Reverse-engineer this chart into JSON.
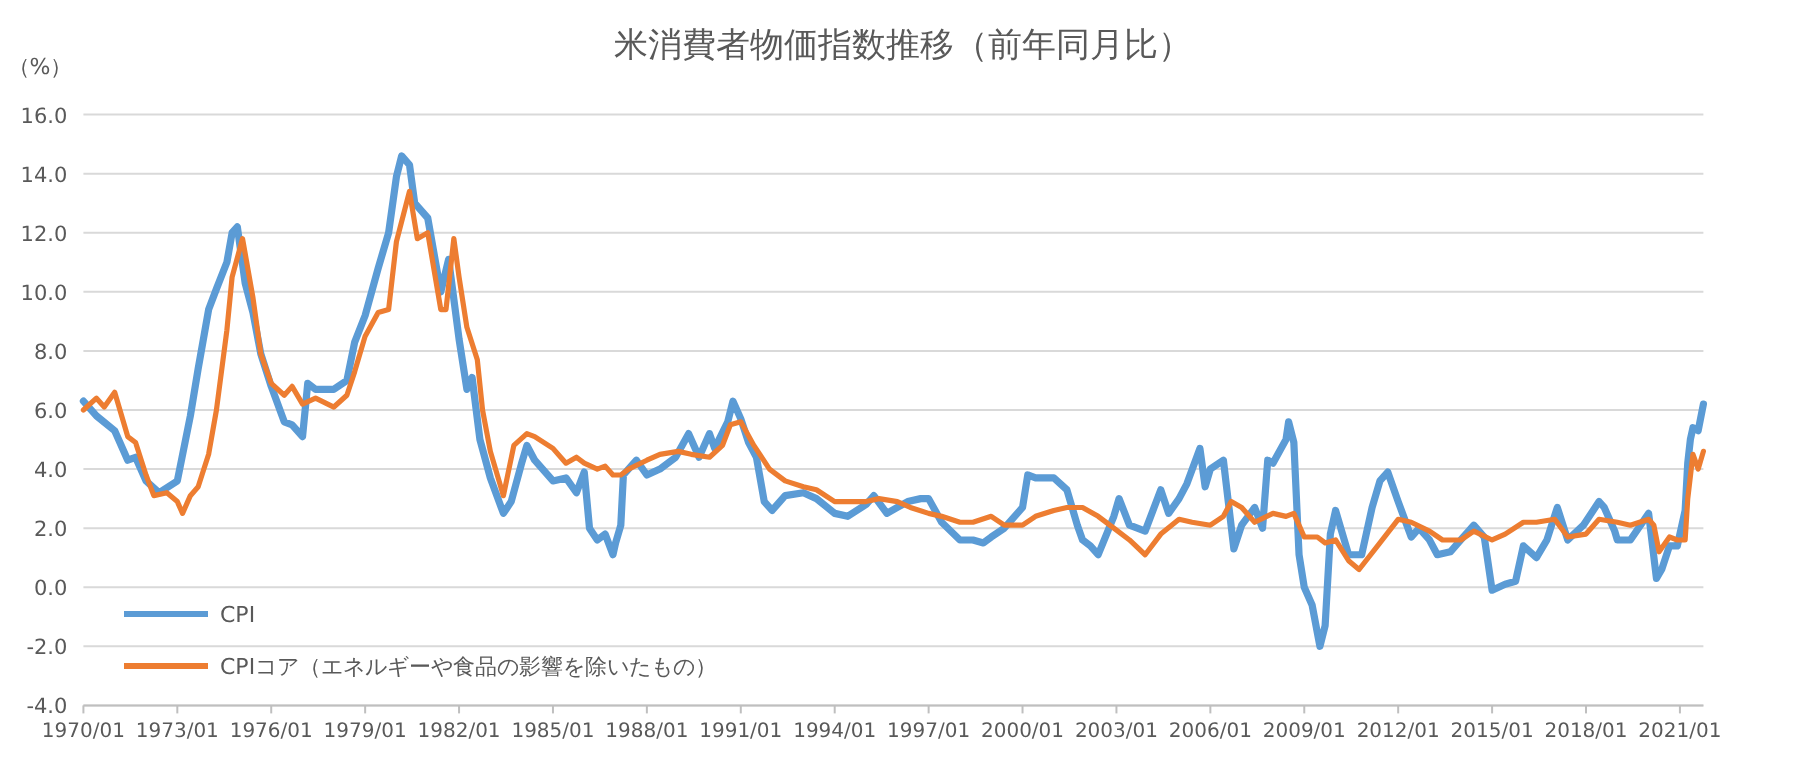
{
  "chart_data": {
    "type": "line",
    "title": "米消費者物価指数推移（前年同月比）",
    "ylabel": "（%）",
    "xlim": [
      "1970-01",
      "2021-10"
    ],
    "xticks": [
      {
        "value": "1970-01",
        "label": "1970/01"
      },
      {
        "value": "1973-01",
        "label": "1973/01"
      },
      {
        "value": "1976-01",
        "label": "1976/01"
      },
      {
        "value": "1979-01",
        "label": "1979/01"
      },
      {
        "value": "1982-01",
        "label": "1982/01"
      },
      {
        "value": "1985-01",
        "label": "1985/01"
      },
      {
        "value": "1988-01",
        "label": "1988/01"
      },
      {
        "value": "1991-01",
        "label": "1991/01"
      },
      {
        "value": "1994-01",
        "label": "1994/01"
      },
      {
        "value": "1997-01",
        "label": "1997/01"
      },
      {
        "value": "2000-01",
        "label": "2000/01"
      },
      {
        "value": "2003-01",
        "label": "2003/01"
      },
      {
        "value": "2006-01",
        "label": "2006/01"
      },
      {
        "value": "2009-01",
        "label": "2009/01"
      },
      {
        "value": "2012-01",
        "label": "2012/01"
      },
      {
        "value": "2015-01",
        "label": "2015/01"
      },
      {
        "value": "2018-01",
        "label": "2018/01"
      },
      {
        "value": "2021-01",
        "label": "2021/01"
      }
    ],
    "ylim": [
      -4,
      16
    ],
    "yticks": [
      {
        "value": -4,
        "label": "-4.0"
      },
      {
        "value": -2,
        "label": "-2.0"
      },
      {
        "value": 0,
        "label": "0.0"
      },
      {
        "value": 2,
        "label": "2.0"
      },
      {
        "value": 4,
        "label": "4.0"
      },
      {
        "value": 6,
        "label": "6.0"
      },
      {
        "value": 8,
        "label": "8.0"
      },
      {
        "value": 10,
        "label": "10.0"
      },
      {
        "value": 12,
        "label": "12.0"
      },
      {
        "value": 14,
        "label": "14.0"
      },
      {
        "value": 16,
        "label": "16.0"
      }
    ],
    "grid": "y",
    "legend": "bottom left",
    "line_style": "solid",
    "series": [
      {
        "name": "CPI",
        "color": "#5b9bd5",
        "x": [
          "1970-01",
          "1970-06",
          "1971-01",
          "1971-06",
          "1971-09",
          "1972-01",
          "1972-06",
          "1973-01",
          "1973-06",
          "1973-09",
          "1974-01",
          "1974-04",
          "1974-08",
          "1974-10",
          "1974-12",
          "1975-03",
          "1975-06",
          "1975-09",
          "1976-01",
          "1976-06",
          "1976-09",
          "1977-01",
          "1977-03",
          "1977-06",
          "1978-01",
          "1978-06",
          "1978-09",
          "1979-01",
          "1979-06",
          "1979-10",
          "1980-01",
          "1980-03",
          "1980-06",
          "1980-08",
          "1981-01",
          "1981-06",
          "1981-09",
          "1982-01",
          "1982-04",
          "1982-06",
          "1982-09",
          "1983-01",
          "1983-06",
          "1983-09",
          "1984-01",
          "1984-03",
          "1984-06",
          "1985-01",
          "1985-06",
          "1985-10",
          "1986-01",
          "1986-03",
          "1986-06",
          "1986-09",
          "1986-12",
          "1987-01",
          "1987-03",
          "1987-04",
          "1987-09",
          "1988-01",
          "1988-06",
          "1988-12",
          "1989-05",
          "1989-09",
          "1990-01",
          "1990-03",
          "1990-08",
          "1990-10",
          "1991-01",
          "1991-04",
          "1991-07",
          "1991-10",
          "1992-01",
          "1992-06",
          "1993-01",
          "1993-06",
          "1994-01",
          "1994-06",
          "1995-01",
          "1995-04",
          "1995-09",
          "1996-01",
          "1996-05",
          "1996-10",
          "1997-01",
          "1997-06",
          "1998-01",
          "1998-06",
          "1998-10",
          "1999-01",
          "1999-06",
          "2000-01",
          "2000-03",
          "2000-06",
          "2001-01",
          "2001-06",
          "2001-10",
          "2001-12",
          "2002-03",
          "2002-06",
          "2002-12",
          "2003-02",
          "2003-06",
          "2003-12",
          "2004-06",
          "2004-09",
          "2005-01",
          "2005-04",
          "2005-09",
          "2005-11",
          "2006-01",
          "2006-06",
          "2006-10",
          "2007-01",
          "2007-06",
          "2007-09",
          "2007-11",
          "2008-01",
          "2008-06",
          "2008-07",
          "2008-09",
          "2008-11",
          "2009-01",
          "2009-04",
          "2009-07",
          "2009-09",
          "2009-11",
          "2010-01",
          "2010-06",
          "2010-11",
          "2011-03",
          "2011-06",
          "2011-09",
          "2012-01",
          "2012-06",
          "2012-09",
          "2013-01",
          "2013-04",
          "2013-09",
          "2014-01",
          "2014-06",
          "2014-10",
          "2015-01",
          "2015-06",
          "2015-10",
          "2016-01",
          "2016-06",
          "2016-10",
          "2017-02",
          "2017-06",
          "2017-12",
          "2018-06",
          "2018-08",
          "2018-12",
          "2019-01",
          "2019-06",
          "2020-01",
          "2020-04",
          "2020-06",
          "2020-09",
          "2020-12",
          "2021-03",
          "2021-04",
          "2021-05",
          "2021-06",
          "2021-08",
          "2021-10"
        ],
        "values": [
          6.3,
          5.8,
          5.3,
          4.3,
          4.4,
          3.6,
          3.2,
          3.6,
          5.8,
          7.4,
          9.4,
          10.1,
          11.0,
          12.0,
          12.2,
          10.3,
          9.3,
          7.9,
          6.8,
          5.6,
          5.5,
          5.1,
          6.9,
          6.7,
          6.7,
          7.0,
          8.3,
          9.2,
          10.8,
          12.0,
          13.9,
          14.6,
          14.3,
          13.0,
          12.5,
          10.0,
          11.1,
          8.4,
          6.7,
          7.1,
          5.0,
          3.7,
          2.5,
          2.9,
          4.2,
          4.8,
          4.3,
          3.6,
          3.7,
          3.2,
          3.9,
          2.0,
          1.6,
          1.8,
          1.1,
          1.5,
          2.1,
          3.8,
          4.3,
          3.8,
          4.0,
          4.4,
          5.2,
          4.4,
          5.2,
          4.7,
          5.6,
          6.3,
          5.7,
          4.9,
          4.4,
          2.9,
          2.6,
          3.1,
          3.2,
          3.0,
          2.5,
          2.4,
          2.8,
          3.1,
          2.5,
          2.7,
          2.9,
          3.0,
          3.0,
          2.2,
          1.6,
          1.6,
          1.5,
          1.7,
          2.0,
          2.7,
          3.8,
          3.7,
          3.7,
          3.3,
          2.1,
          1.6,
          1.4,
          1.1,
          2.4,
          3.0,
          2.1,
          1.9,
          3.3,
          2.5,
          3.0,
          3.5,
          4.7,
          3.4,
          4.0,
          4.3,
          1.3,
          2.1,
          2.7,
          2.0,
          4.3,
          4.2,
          5.0,
          5.6,
          4.9,
          1.1,
          0.0,
          -0.6,
          -2.0,
          -1.3,
          1.8,
          2.6,
          1.1,
          1.1,
          2.7,
          3.6,
          3.9,
          2.9,
          1.7,
          2.0,
          1.6,
          1.1,
          1.2,
          1.6,
          2.1,
          1.7,
          -0.1,
          0.1,
          0.2,
          1.4,
          1.0,
          1.6,
          2.7,
          1.6,
          2.1,
          2.9,
          2.7,
          1.9,
          1.6,
          1.6,
          2.5,
          0.3,
          0.6,
          1.4,
          1.4,
          2.6,
          4.2,
          5.0,
          5.4,
          5.3,
          6.2
        ]
      },
      {
        "name": "CPIコア（エネルギーや食品の影響を除いたもの）",
        "color": "#ed7d31",
        "x": [
          "1970-01",
          "1970-06",
          "1970-09",
          "1971-01",
          "1971-06",
          "1971-09",
          "1972-01",
          "1972-04",
          "1972-09",
          "1973-01",
          "1973-03",
          "1973-06",
          "1973-09",
          "1974-01",
          "1974-04",
          "1974-08",
          "1974-10",
          "1975-02",
          "1975-06",
          "1975-09",
          "1976-01",
          "1976-06",
          "1976-09",
          "1977-01",
          "1977-06",
          "1978-01",
          "1978-06",
          "1978-09",
          "1979-01",
          "1979-06",
          "1979-10",
          "1980-01",
          "1980-06",
          "1980-09",
          "1981-01",
          "1981-06",
          "1981-08",
          "1981-11",
          "1982-01",
          "1982-04",
          "1982-08",
          "1982-10",
          "1983-01",
          "1983-06",
          "1983-10",
          "1984-03",
          "1984-06",
          "1985-01",
          "1985-06",
          "1985-10",
          "1986-01",
          "1986-06",
          "1986-09",
          "1986-12",
          "1987-03",
          "1987-06",
          "1988-01",
          "1988-06",
          "1989-01",
          "1989-06",
          "1990-01",
          "1990-06",
          "1990-09",
          "1991-01",
          "1991-06",
          "1991-12",
          "1992-06",
          "1993-01",
          "1993-06",
          "1994-01",
          "1994-06",
          "1995-01",
          "1995-06",
          "1996-01",
          "1996-06",
          "1997-01",
          "1997-06",
          "1998-01",
          "1998-06",
          "1999-01",
          "1999-06",
          "2000-01",
          "2000-06",
          "2001-01",
          "2001-06",
          "2001-12",
          "2002-06",
          "2002-12",
          "2003-06",
          "2003-12",
          "2004-06",
          "2005-01",
          "2005-06",
          "2006-01",
          "2006-06",
          "2006-09",
          "2007-01",
          "2007-06",
          "2008-01",
          "2008-06",
          "2008-09",
          "2009-01",
          "2009-06",
          "2009-09",
          "2010-01",
          "2010-06",
          "2010-10",
          "2011-06",
          "2012-01",
          "2012-06",
          "2013-01",
          "2013-06",
          "2014-01",
          "2014-06",
          "2015-01",
          "2015-06",
          "2016-01",
          "2016-06",
          "2017-01",
          "2017-06",
          "2018-01",
          "2018-06",
          "2019-01",
          "2019-06",
          "2020-01",
          "2020-03",
          "2020-05",
          "2020-09",
          "2020-12",
          "2021-03",
          "2021-04",
          "2021-06",
          "2021-08",
          "2021-10"
        ],
        "values": [
          6.0,
          6.4,
          6.1,
          6.6,
          5.1,
          4.9,
          3.8,
          3.1,
          3.2,
          2.9,
          2.5,
          3.1,
          3.4,
          4.5,
          6.0,
          8.7,
          10.5,
          11.8,
          9.8,
          7.9,
          6.9,
          6.5,
          6.8,
          6.2,
          6.4,
          6.1,
          6.5,
          7.3,
          8.5,
          9.3,
          9.4,
          11.7,
          13.4,
          11.8,
          12.0,
          9.4,
          9.4,
          11.8,
          10.5,
          8.8,
          7.7,
          6.0,
          4.6,
          3.1,
          4.8,
          5.2,
          5.1,
          4.7,
          4.2,
          4.4,
          4.2,
          4.0,
          4.1,
          3.8,
          3.8,
          4.0,
          4.3,
          4.5,
          4.6,
          4.5,
          4.4,
          4.8,
          5.5,
          5.6,
          4.8,
          4.0,
          3.6,
          3.4,
          3.3,
          2.9,
          2.9,
          2.9,
          3.0,
          2.9,
          2.7,
          2.5,
          2.4,
          2.2,
          2.2,
          2.4,
          2.1,
          2.1,
          2.4,
          2.6,
          2.7,
          2.7,
          2.4,
          2.0,
          1.6,
          1.1,
          1.8,
          2.3,
          2.2,
          2.1,
          2.4,
          2.9,
          2.7,
          2.2,
          2.5,
          2.4,
          2.5,
          1.7,
          1.7,
          1.5,
          1.6,
          0.9,
          0.6,
          1.5,
          2.3,
          2.2,
          1.9,
          1.6,
          1.6,
          1.9,
          1.6,
          1.8,
          2.2,
          2.2,
          2.3,
          1.7,
          1.8,
          2.3,
          2.2,
          2.1,
          2.3,
          2.1,
          1.2,
          1.7,
          1.6,
          1.6,
          3.0,
          4.5,
          4.0,
          4.6
        ]
      }
    ]
  }
}
